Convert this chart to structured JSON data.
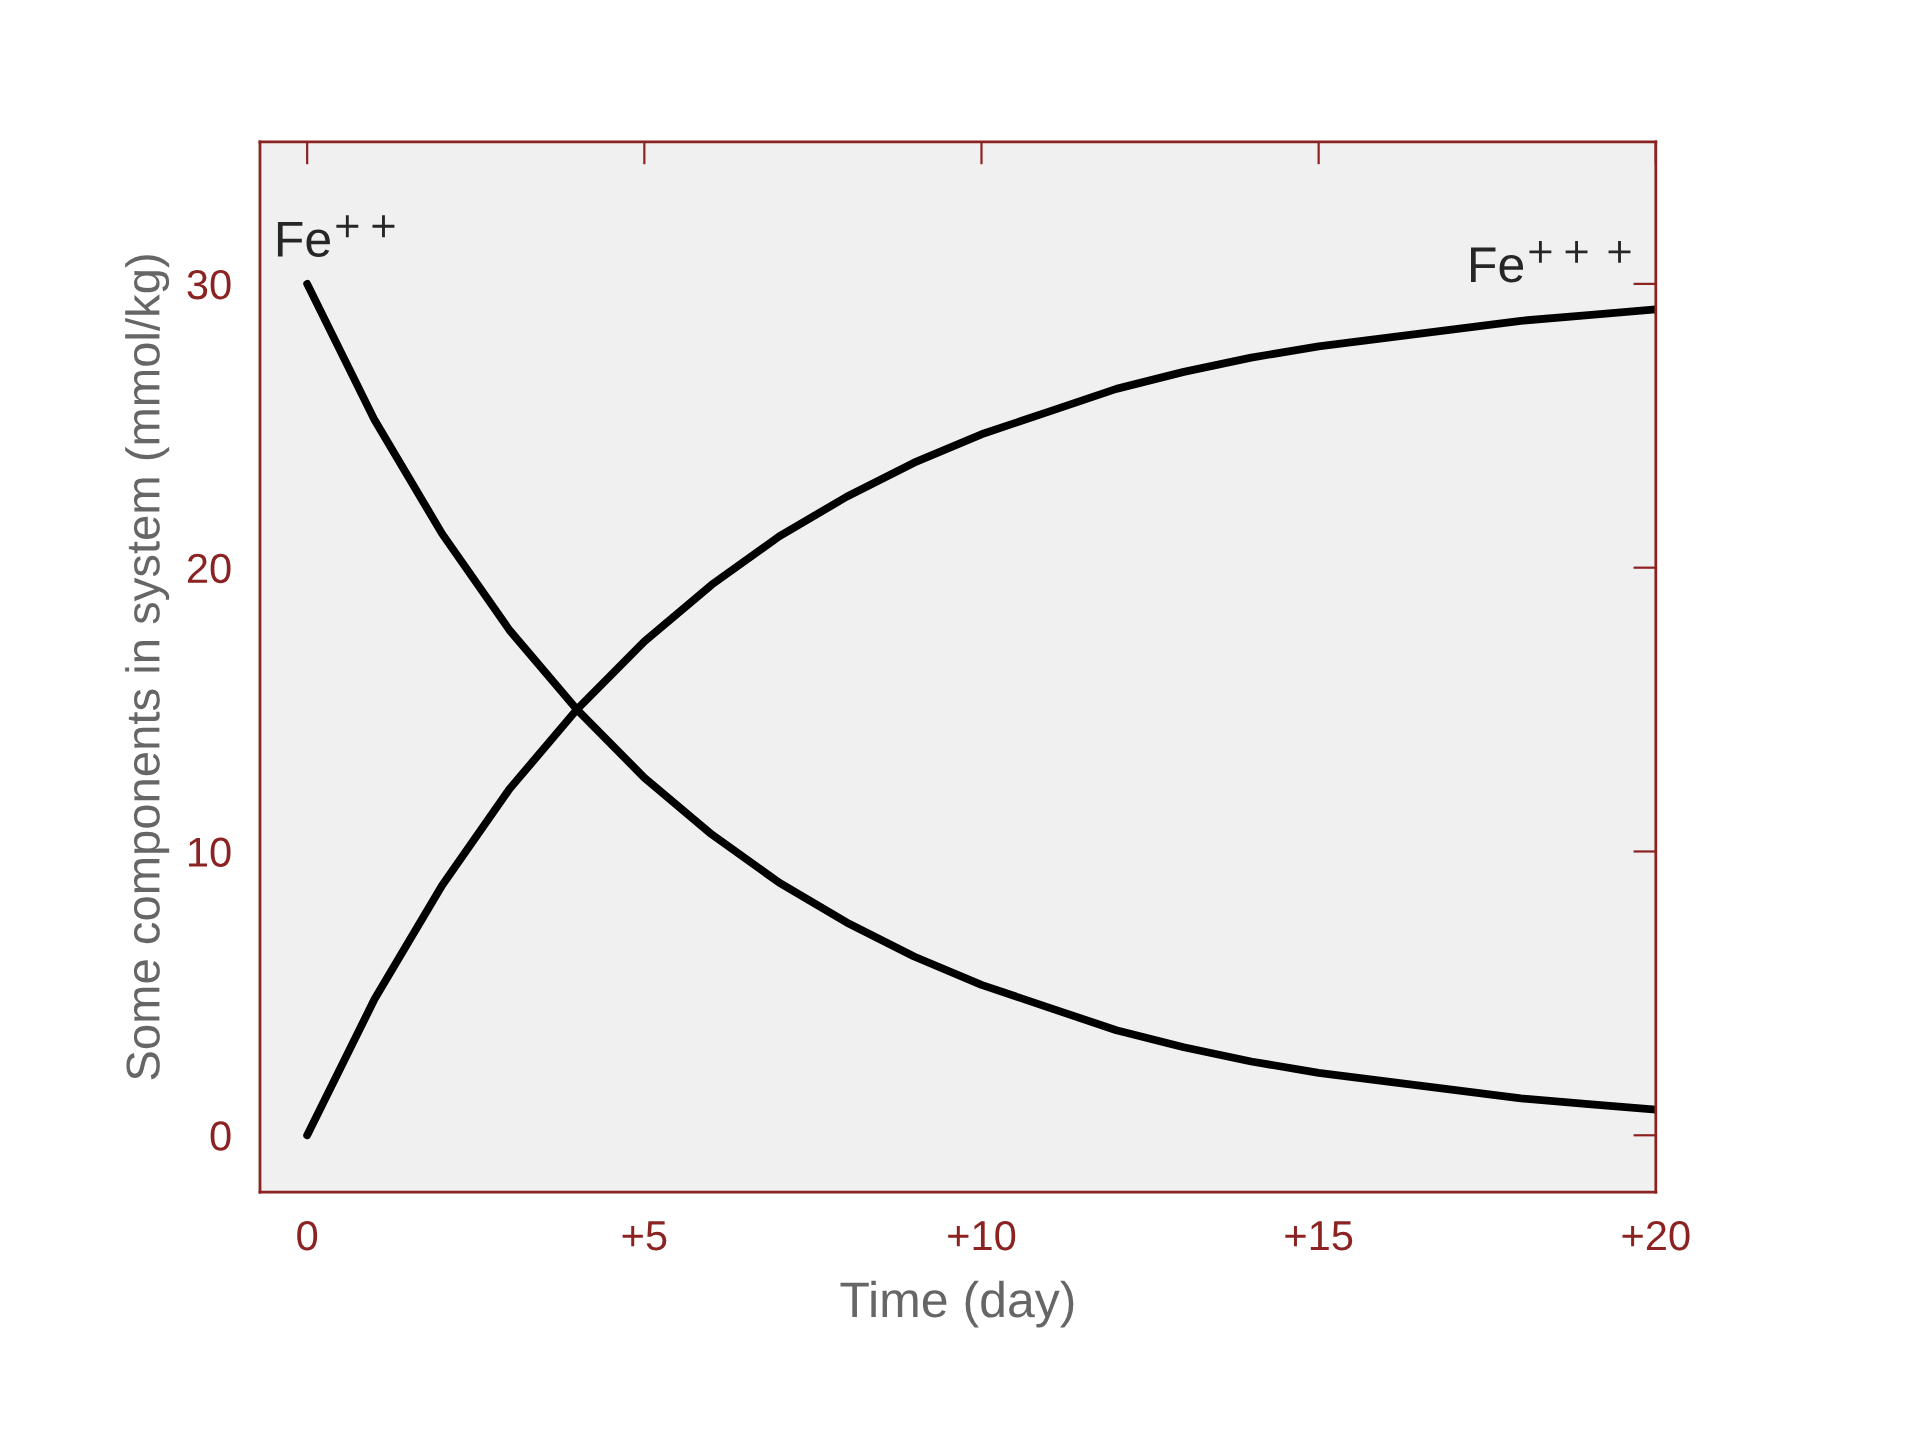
{
  "chart_data": {
    "type": "line",
    "xlabel": "Time (day)",
    "ylabel": "Some components in system (mmol/kg)",
    "x": [
      0,
      1,
      2,
      3,
      4,
      5,
      6,
      7,
      8,
      9,
      10,
      11,
      12,
      13,
      14,
      15,
      16,
      17,
      18,
      19,
      20
    ],
    "series": [
      {
        "name": "Fe$^{++}$",
        "color": "#000000",
        "values": [
          30,
          25.2,
          21.2,
          17.8,
          15.0,
          12.6,
          10.6,
          8.9,
          7.5,
          6.3,
          5.3,
          4.5,
          3.7,
          3.1,
          2.6,
          2.2,
          1.9,
          1.6,
          1.3,
          1.1,
          0.9
        ]
      },
      {
        "name": "Fe$^{+++}$",
        "color": "#000000",
        "values": [
          0,
          4.8,
          8.8,
          12.2,
          15.0,
          17.4,
          19.4,
          21.1,
          22.5,
          23.7,
          24.7,
          25.5,
          26.3,
          26.9,
          27.4,
          27.8,
          28.1,
          28.4,
          28.7,
          28.9,
          29.1
        ]
      }
    ],
    "xlim": [
      -0.7,
      20
    ],
    "ylim": [
      -2,
      35
    ],
    "xticks": [
      0,
      {
        "value": 5,
        "label": "+5"
      },
      {
        "value": 10,
        "label": "+10"
      },
      {
        "value": 15,
        "label": "+15"
      },
      {
        "value": 20,
        "label": "+20"
      }
    ],
    "yticks": [
      0,
      10,
      20,
      30
    ],
    "grid": false,
    "legend": false,
    "marker": "none",
    "line_style": "solid"
  }
}
